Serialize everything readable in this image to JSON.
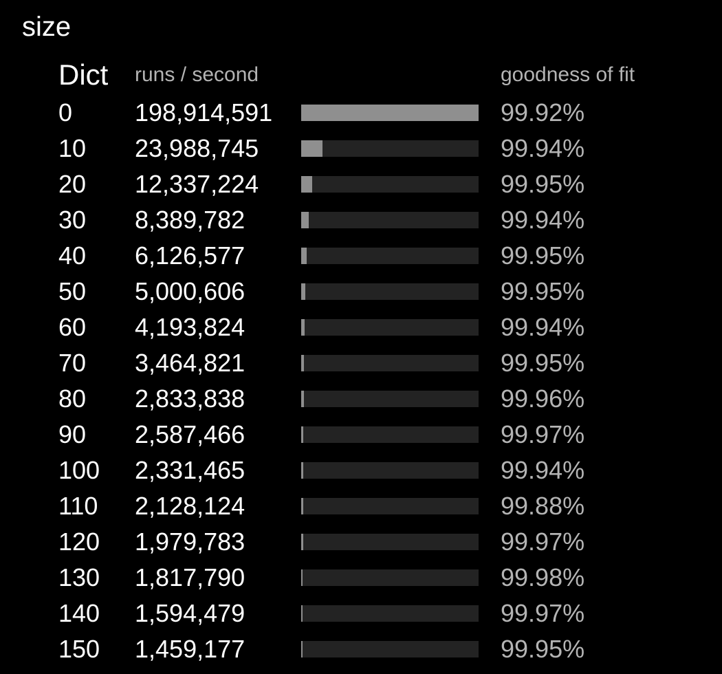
{
  "title": "size",
  "headers": {
    "dict": "Dict",
    "runs": "runs / second",
    "fit": "goodness of fit"
  },
  "colors": {
    "background": "#000000",
    "bar_fill": "#8f8f8f",
    "bar_track": "#232323",
    "secondary_text": "#b4b4b4"
  },
  "chart_data": {
    "type": "bar",
    "orientation": "horizontal",
    "categories": [
      "0",
      "10",
      "20",
      "30",
      "40",
      "50",
      "60",
      "70",
      "80",
      "90",
      "100",
      "110",
      "120",
      "130",
      "140",
      "150"
    ],
    "values": [
      198914591,
      23988745,
      12337224,
      8389782,
      6126577,
      5000606,
      4193824,
      3464821,
      2833838,
      2587466,
      2331465,
      2128124,
      1979783,
      1817790,
      1594479,
      1459177
    ],
    "xlim": [
      0,
      198914591
    ],
    "rows": [
      {
        "size": "0",
        "runs": "198,914,591",
        "fit": "99.92%"
      },
      {
        "size": "10",
        "runs": "23,988,745",
        "fit": "99.94%"
      },
      {
        "size": "20",
        "runs": "12,337,224",
        "fit": "99.95%"
      },
      {
        "size": "30",
        "runs": "8,389,782",
        "fit": "99.94%"
      },
      {
        "size": "40",
        "runs": "6,126,577",
        "fit": "99.95%"
      },
      {
        "size": "50",
        "runs": "5,000,606",
        "fit": "99.95%"
      },
      {
        "size": "60",
        "runs": "4,193,824",
        "fit": "99.94%"
      },
      {
        "size": "70",
        "runs": "3,464,821",
        "fit": "99.95%"
      },
      {
        "size": "80",
        "runs": "2,833,838",
        "fit": "99.96%"
      },
      {
        "size": "90",
        "runs": "2,587,466",
        "fit": "99.97%"
      },
      {
        "size": "100",
        "runs": "2,331,465",
        "fit": "99.94%"
      },
      {
        "size": "110",
        "runs": "2,128,124",
        "fit": "99.88%"
      },
      {
        "size": "120",
        "runs": "1,979,783",
        "fit": "99.97%"
      },
      {
        "size": "130",
        "runs": "1,817,790",
        "fit": "99.98%"
      },
      {
        "size": "140",
        "runs": "1,594,479",
        "fit": "99.97%"
      },
      {
        "size": "150",
        "runs": "1,459,177",
        "fit": "99.95%"
      }
    ]
  }
}
